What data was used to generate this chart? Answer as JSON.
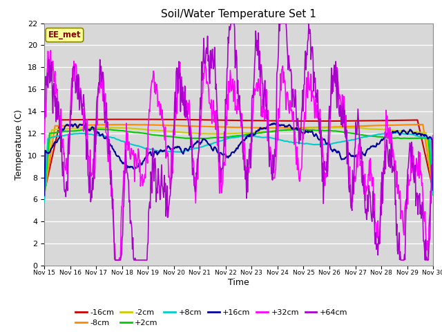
{
  "title": "Soil/Water Temperature Set 1",
  "xlabel": "Time",
  "ylabel": "Temperature (C)",
  "ylim": [
    0,
    22
  ],
  "yticks": [
    0,
    2,
    4,
    6,
    8,
    10,
    12,
    14,
    16,
    18,
    20,
    22
  ],
  "annotation": "EE_met",
  "xtick_positions": [
    15,
    16,
    17,
    18,
    19,
    20,
    21,
    22,
    23,
    24,
    25,
    26,
    27,
    28,
    29,
    30
  ],
  "xtick_labels": [
    "Nov 15",
    "Nov 16",
    "Nov 17",
    "Nov 18",
    "Nov 19",
    "Nov 20",
    "Nov 21",
    "Nov 22",
    "Nov 23",
    "Nov 24",
    "Nov 25",
    "Nov 26",
    "Nov 27",
    "Nov 28",
    "Nov 29",
    "Nov 30"
  ],
  "colors": {
    "-16cm": "#cc0000",
    "-8cm": "#ff8800",
    "-2cm": "#cccc00",
    "+2cm": "#00cc00",
    "+8cm": "#00cccc",
    "+16cm": "#000099",
    "+32cm": "#ff00ff",
    "+64cm": "#aa00cc"
  },
  "n_points": 720,
  "x_start": 15,
  "x_end": 30
}
